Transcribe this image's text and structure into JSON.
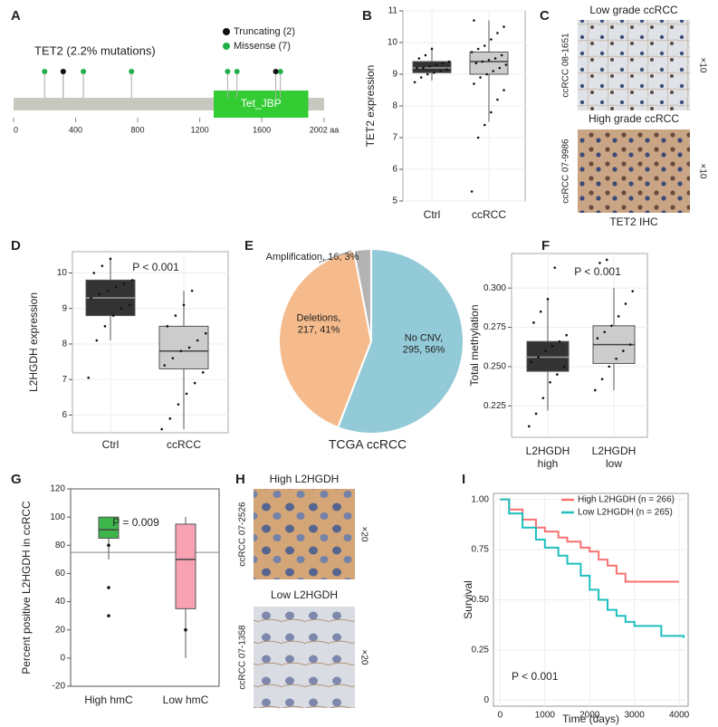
{
  "chart_data": [
    {
      "type": "lollipop",
      "panel": "A",
      "title": "TET2 (2.2% mutations)",
      "xlim": [
        0,
        2002
      ],
      "xticks": [
        0,
        400,
        800,
        1200,
        1600,
        {
          "value": 2002,
          "label": "2002 aa"
        }
      ],
      "domain": {
        "label": "Tet_JBP",
        "start": 1290,
        "end": 1900,
        "color": "#33cc33"
      },
      "bar_color": "#c8c8c0",
      "series": [
        {
          "name": "Missense (7)",
          "color": "#22b04b",
          "x": [
            200,
            320,
            450,
            760,
            1380,
            1440,
            1720
          ]
        },
        {
          "name": "Truncating (2)",
          "color": "#111111",
          "x": [
            320,
            1690
          ]
        }
      ]
    },
    {
      "type": "box",
      "panel": "B",
      "ylabel": "TET2 expression",
      "categories": [
        "Ctrl",
        "ccRCC"
      ],
      "ylim": [
        5,
        11
      ],
      "yticks": [
        5,
        6,
        7,
        8,
        9,
        10,
        11
      ],
      "grid": true,
      "colors": [
        "#333333",
        "#cccccc"
      ],
      "boxes": [
        {
          "whislo": 8.8,
          "q1": 9.05,
          "med": 9.2,
          "q3": 9.4,
          "whishi": 9.85,
          "points": [
            8.75,
            8.9,
            9.0,
            9.05,
            9.1,
            9.15,
            9.2,
            9.2,
            9.25,
            9.3,
            9.35,
            9.4,
            9.5,
            9.6,
            9.8
          ]
        },
        {
          "whislo": 7.5,
          "q1": 9.0,
          "med": 9.4,
          "q3": 9.7,
          "whishi": 10.7,
          "points": [
            5.3,
            7.0,
            7.4,
            7.8,
            8.2,
            8.5,
            8.7,
            8.9,
            9.0,
            9.1,
            9.2,
            9.3,
            9.35,
            9.4,
            9.45,
            9.5,
            9.6,
            9.7,
            9.8,
            9.9,
            10.1,
            10.3,
            10.5,
            10.7
          ]
        }
      ]
    },
    {
      "type": "box",
      "panel": "D",
      "ylabel": "L2HGDH expression",
      "annotation": "P < 0.001",
      "categories": [
        "Ctrl",
        "ccRCC"
      ],
      "ylim": [
        5.5,
        10.6
      ],
      "yticks": [
        6,
        7,
        8,
        9,
        10
      ],
      "grid": true,
      "colors": [
        "#333333",
        "#cccccc"
      ],
      "boxes": [
        {
          "whislo": 8.1,
          "q1": 8.8,
          "med": 9.3,
          "q3": 9.8,
          "whishi": 10.4,
          "points": [
            7.05,
            8.1,
            8.5,
            8.8,
            9.0,
            9.1,
            9.3,
            9.4,
            9.5,
            9.6,
            9.7,
            9.8,
            10.0,
            10.2,
            10.4
          ]
        },
        {
          "whislo": 5.6,
          "q1": 7.3,
          "med": 7.8,
          "q3": 8.5,
          "whishi": 9.5,
          "points": [
            5.6,
            5.9,
            6.3,
            6.6,
            6.9,
            7.2,
            7.4,
            7.6,
            7.8,
            7.9,
            8.1,
            8.3,
            8.5,
            8.8,
            9.1,
            9.5
          ]
        }
      ]
    },
    {
      "type": "pie",
      "panel": "E",
      "title": "TCGA ccRCC",
      "values": [
        295,
        217,
        16
      ],
      "value_labels": [
        "No CNV,\n295, 56%",
        "Deletions,\n217, 41%",
        "Amplification, 16, 3%"
      ],
      "colors": [
        "#93cad8",
        "#f5bb8c",
        "#b3b3b3"
      ]
    },
    {
      "type": "box",
      "panel": "F",
      "ylabel": "Total methylation",
      "annotation": "P < 0.001",
      "categories": [
        "L2HGDH\nhigh",
        "L2HGDH\nlow"
      ],
      "ylim": [
        0.205,
        0.322
      ],
      "yticks": [
        0.225,
        {
          "value": 0.25,
          "label": "0.250"
        },
        0.275,
        {
          "value": 0.3,
          "label": "0.300"
        }
      ],
      "grid": true,
      "colors": [
        "#333333",
        "#cccccc"
      ],
      "boxes": [
        {
          "whislo": 0.222,
          "q1": 0.247,
          "med": 0.256,
          "q3": 0.266,
          "whishi": 0.293,
          "points": [
            0.212,
            0.22,
            0.23,
            0.24,
            0.245,
            0.25,
            0.253,
            0.256,
            0.26,
            0.263,
            0.266,
            0.27,
            0.278,
            0.285,
            0.293,
            0.313
          ]
        },
        {
          "whislo": 0.235,
          "q1": 0.252,
          "med": 0.264,
          "q3": 0.276,
          "whishi": 0.3,
          "points": [
            0.235,
            0.242,
            0.25,
            0.255,
            0.26,
            0.264,
            0.268,
            0.272,
            0.276,
            0.282,
            0.29,
            0.298,
            0.316,
            0.318
          ]
        }
      ]
    },
    {
      "type": "box",
      "panel": "G",
      "ylabel": "Percent positive L2HGDH in ccRCC",
      "annotation": "P = 0.009",
      "categories": [
        "High hmC",
        "Low hmC"
      ],
      "ylim": [
        -20,
        120
      ],
      "yticks": [
        -20,
        0,
        20,
        40,
        60,
        80,
        100,
        120
      ],
      "grid": false,
      "colors": [
        "#3db54a",
        "#f7a1b3"
      ],
      "reference_line": 75,
      "boxes": [
        {
          "whislo": 70,
          "q1": 85,
          "med": 91,
          "q3": 100,
          "whishi": 100,
          "points": [
            30,
            50,
            80
          ]
        },
        {
          "whislo": 0,
          "q1": 35,
          "med": 70,
          "q3": 95,
          "whishi": 100,
          "points": [
            20
          ]
        }
      ]
    },
    {
      "type": "survival",
      "panel": "I",
      "xlabel": "Time (days)",
      "ylabel": "Survival",
      "annotation": "P < 0.001",
      "xlim": [
        -150,
        4200
      ],
      "xticks": [
        0,
        1000,
        2000,
        3000,
        4000
      ],
      "ylim": [
        -0.03,
        1.03
      ],
      "yticks": [
        0,
        0.25,
        {
          "value": 0.5,
          "label": "0.50"
        },
        0.75,
        {
          "value": 1,
          "label": "1.00"
        }
      ],
      "grid": true,
      "series": [
        {
          "name": "High L2HGDH (n = 266)",
          "color": "#f87170",
          "x": [
            0,
            200,
            500,
            800,
            1000,
            1300,
            1500,
            1800,
            2000,
            2200,
            2400,
            2600,
            2800,
            3000,
            3500,
            4000
          ],
          "y": [
            1.0,
            0.95,
            0.9,
            0.86,
            0.84,
            0.81,
            0.79,
            0.76,
            0.74,
            0.7,
            0.67,
            0.63,
            0.59,
            0.59,
            0.59,
            0.59
          ]
        },
        {
          "name": "Low L2HGDH (n = 265)",
          "color": "#1fbfbf",
          "x": [
            0,
            200,
            500,
            800,
            1000,
            1300,
            1500,
            1800,
            2000,
            2200,
            2400,
            2600,
            2800,
            3000,
            3600,
            4100
          ],
          "y": [
            1.0,
            0.93,
            0.86,
            0.8,
            0.76,
            0.72,
            0.68,
            0.62,
            0.55,
            0.5,
            0.45,
            0.42,
            0.39,
            0.37,
            0.32,
            0.31
          ]
        }
      ]
    }
  ],
  "images": [
    {
      "panel": "C",
      "caption": "TET2 IHC",
      "items": [
        {
          "title": "Low grade ccRCC",
          "sample": "ccRCC 08-1651",
          "magnification": "×10"
        },
        {
          "title": "High grade ccRCC",
          "sample": "ccRCC 07-9986",
          "magnification": "×10"
        }
      ]
    },
    {
      "panel": "H",
      "items": [
        {
          "title": "High L2HGDH",
          "sample": "ccRCC 07-2526",
          "magnification": "×20"
        },
        {
          "title": "Low L2HGDH",
          "sample": "ccRCC 07-1358",
          "magnification": "×20"
        }
      ]
    }
  ]
}
